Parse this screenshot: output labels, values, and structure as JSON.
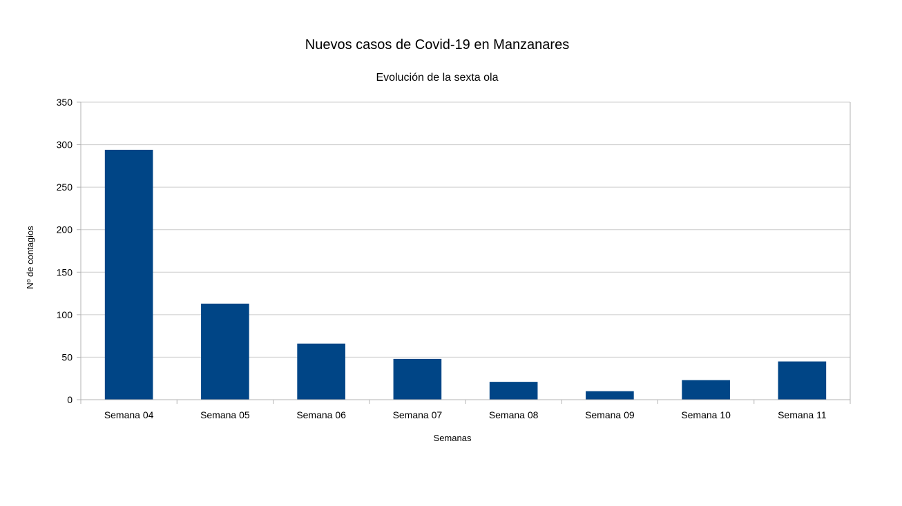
{
  "chart_data": {
    "type": "bar",
    "title": "Nuevos casos de Covid-19 en Manzanares",
    "subtitle": "Evolución de la sexta ola",
    "xlabel": "Semanas",
    "ylabel": "Nº de contagios",
    "categories": [
      "Semana 04",
      "Semana 05",
      "Semana 06",
      "Semana 07",
      "Semana 08",
      "Semana 09",
      "Semana 10",
      "Semana 11"
    ],
    "values": [
      294,
      113,
      66,
      48,
      21,
      10,
      23,
      45
    ],
    "ylim": [
      0,
      350
    ],
    "yticks": [
      0,
      50,
      100,
      150,
      200,
      250,
      300,
      350
    ],
    "grid": true,
    "legend": "none",
    "bar_color": "#004586",
    "grid_color": "#cccccc",
    "axis_color": "#b3b3b3"
  }
}
